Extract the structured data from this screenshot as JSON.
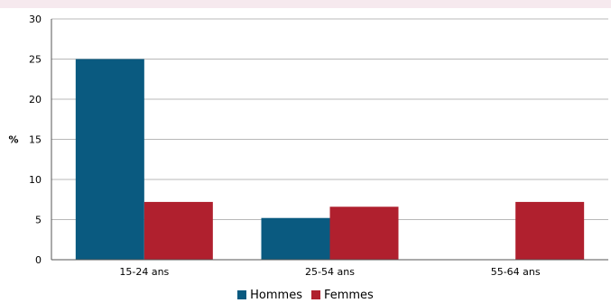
{
  "chart_data": {
    "type": "bar",
    "title": "",
    "ylabel": "%",
    "xlabel": "",
    "ylim": [
      0,
      30
    ],
    "yticks": [
      0,
      5,
      10,
      15,
      20,
      25,
      30
    ],
    "categories": [
      "15-24 ans",
      "25-54 ans",
      "55-64 ans"
    ],
    "series": [
      {
        "name": "Hommes",
        "color": "#0a5a80",
        "values": [
          25,
          5.2,
          0
        ]
      },
      {
        "name": "Femmes",
        "color": "#b0202e",
        "values": [
          7.2,
          6.6,
          7.2
        ]
      }
    ],
    "grid": true,
    "legend_position": "bottom"
  }
}
